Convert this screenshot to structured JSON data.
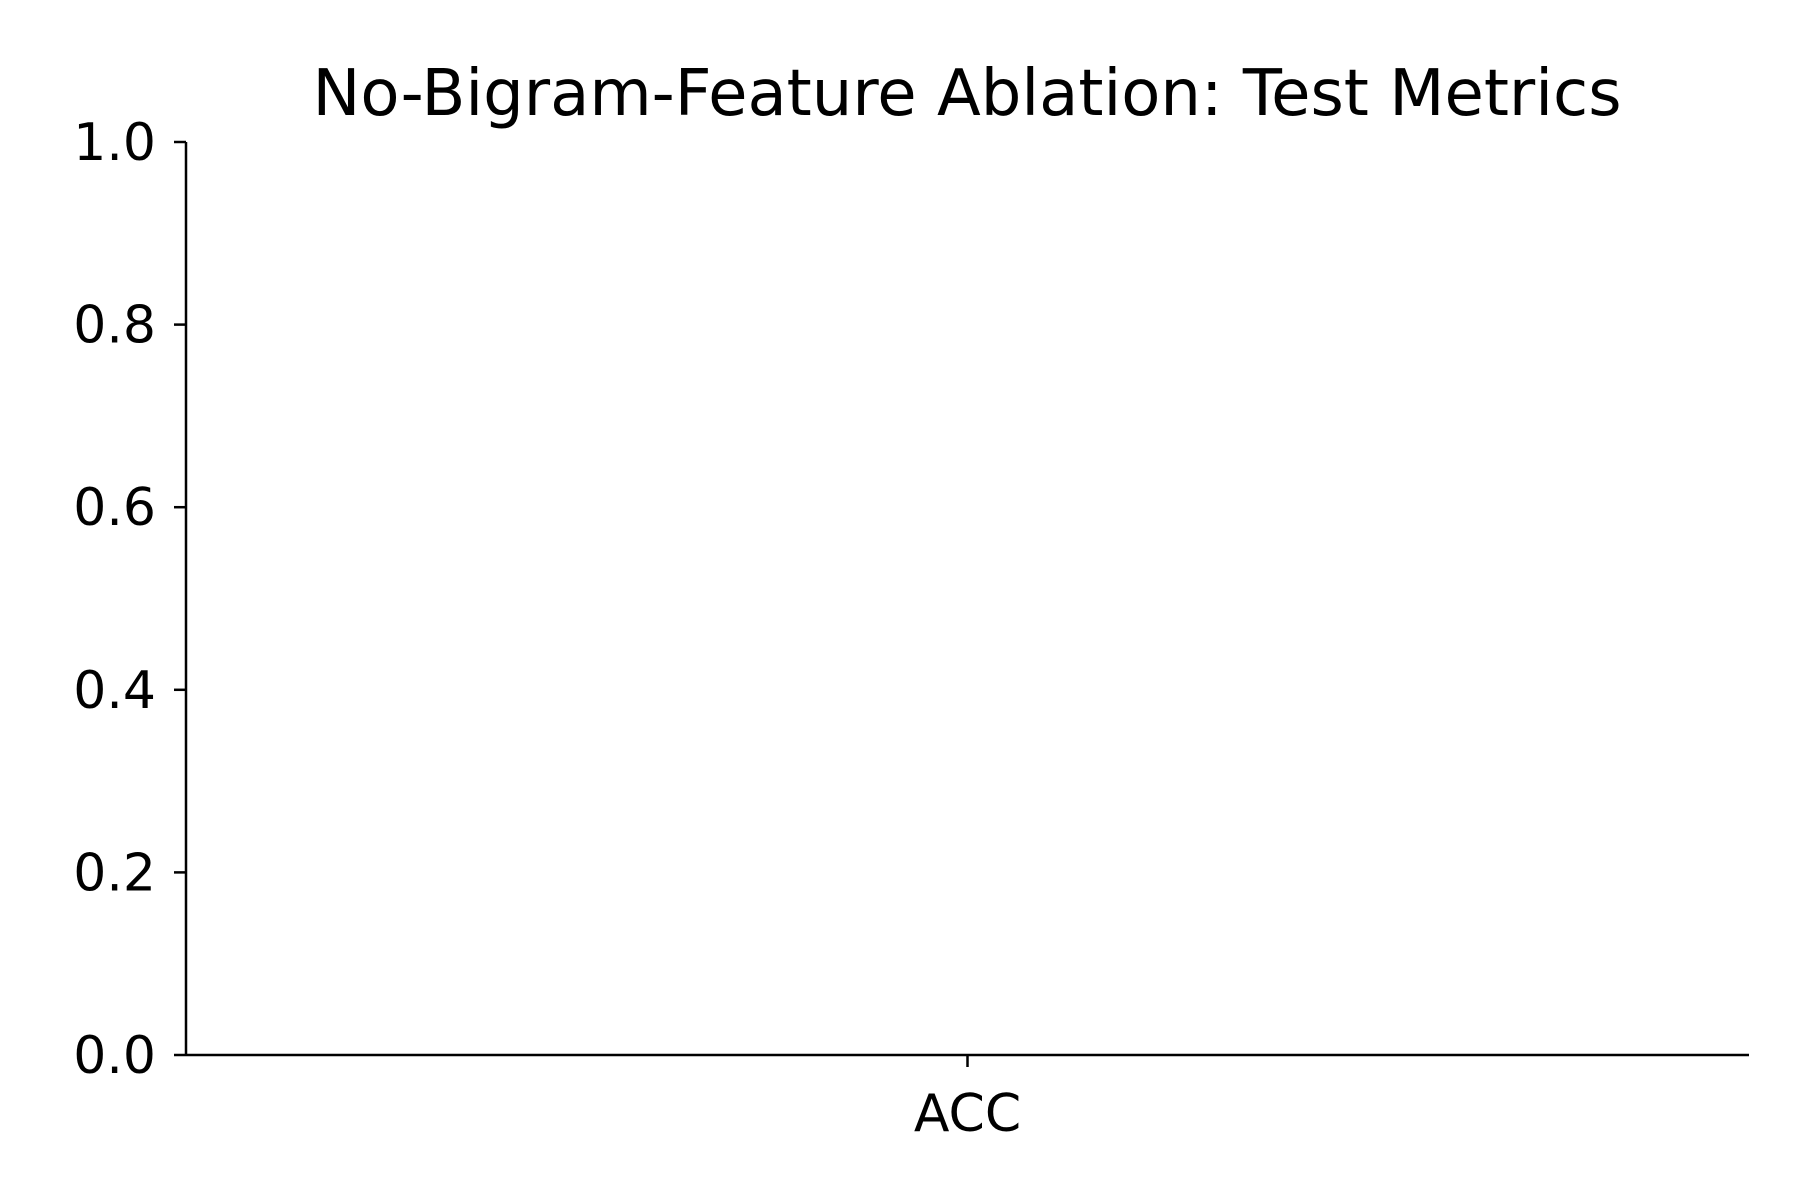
{
  "chart_data": {
    "type": "bar",
    "title": "No-Bigram-Feature Ablation: Test Metrics",
    "xlabel": "",
    "ylabel": "",
    "categories": [
      "ACC"
    ],
    "series": [
      {
        "values": [
          null
        ]
      }
    ],
    "ylim": [
      0,
      1.0
    ],
    "yticks": [
      "0.0",
      "0.2",
      "0.4",
      "0.6",
      "0.8",
      "1.0"
    ],
    "grid": false,
    "legend": "none",
    "colors": {
      "axis": "#000000",
      "text": "#000000",
      "background": "#ffffff"
    }
  }
}
